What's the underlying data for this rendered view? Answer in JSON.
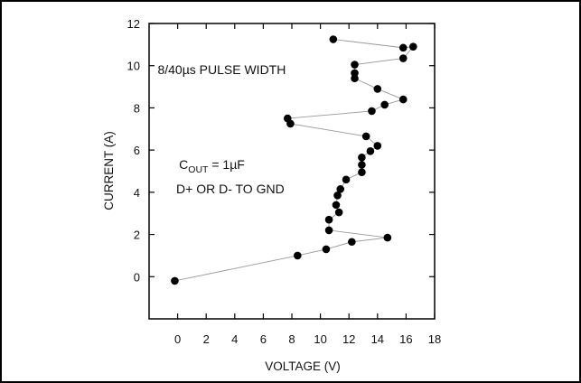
{
  "chart_data": {
    "type": "scatter",
    "xlabel": "VOLTAGE (V)",
    "ylabel": "CURRENT (A)",
    "xlim": [
      -2,
      18
    ],
    "ylim": [
      -2,
      12
    ],
    "x_ticks": [
      0,
      2,
      4,
      6,
      8,
      10,
      12,
      14,
      16,
      18
    ],
    "y_ticks": [
      0,
      2,
      4,
      6,
      8,
      10,
      12
    ],
    "grid": false,
    "legend": "none",
    "connected_points": true,
    "line_color": "#999999",
    "marker_color": "#000000",
    "series": [
      {
        "points": [
          [
            -0.2,
            -0.2
          ],
          [
            8.4,
            1.0
          ],
          [
            10.4,
            1.3
          ],
          [
            12.2,
            1.65
          ],
          [
            14.7,
            1.85
          ],
          [
            10.6,
            2.2
          ],
          [
            10.6,
            2.7
          ],
          [
            11.3,
            3.05
          ],
          [
            11.1,
            3.4
          ],
          [
            11.2,
            3.85
          ],
          [
            11.4,
            4.15
          ],
          [
            11.8,
            4.6
          ],
          [
            12.9,
            4.95
          ],
          [
            12.9,
            5.3
          ],
          [
            12.9,
            5.65
          ],
          [
            13.5,
            5.95
          ],
          [
            14.0,
            6.2
          ],
          [
            13.2,
            6.65
          ],
          [
            7.9,
            7.25
          ],
          [
            7.7,
            7.5
          ],
          [
            13.6,
            7.85
          ],
          [
            14.5,
            8.15
          ],
          [
            15.8,
            8.4
          ],
          [
            14.0,
            8.9
          ],
          [
            12.4,
            9.4
          ],
          [
            12.4,
            9.65
          ],
          [
            12.4,
            10.05
          ],
          [
            15.8,
            10.35
          ],
          [
            16.5,
            10.9
          ],
          [
            15.8,
            10.85
          ],
          [
            10.9,
            11.25
          ]
        ]
      }
    ],
    "annotations": [
      {
        "text": "8/40µs PULSE WIDTH",
        "x": -1.4,
        "y": 9.6
      },
      {
        "base": "C",
        "sub": "OUT",
        "rest": " = 1µF",
        "x": 0.1,
        "y": 5.1
      },
      {
        "text": "D+ OR D- TO GND",
        "x": -0.1,
        "y": 3.95
      }
    ]
  }
}
